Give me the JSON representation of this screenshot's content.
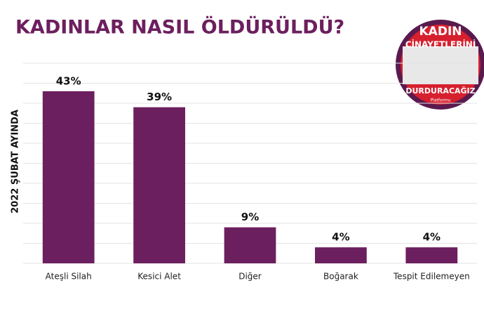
{
  "chart_data": {
    "type": "bar",
    "title": "KADINLAR NASIL ÖLDÜRÜLDÜ?",
    "y_label": "2022 ŞUBAT AYINDA",
    "categories": [
      "Ateşli Silah",
      "Kesici Alet",
      "Diğer",
      "Boğarak",
      "Tespit Edilemeyen"
    ],
    "values": [
      43,
      39,
      9,
      4,
      4
    ],
    "value_labels": [
      "43%",
      "39%",
      "9%",
      "4%",
      "4%"
    ],
    "color": "#6c1f5e",
    "ylim": [
      0,
      50
    ],
    "yticks": [
      0,
      5,
      10,
      15,
      20,
      25,
      30,
      35,
      40,
      45,
      50
    ],
    "grid": true
  },
  "logo": {
    "line1": "KADIN",
    "line2": "CİNAYETLERİNİ",
    "line3": "DURDURACAĞIZ",
    "line4": "Platformu"
  }
}
